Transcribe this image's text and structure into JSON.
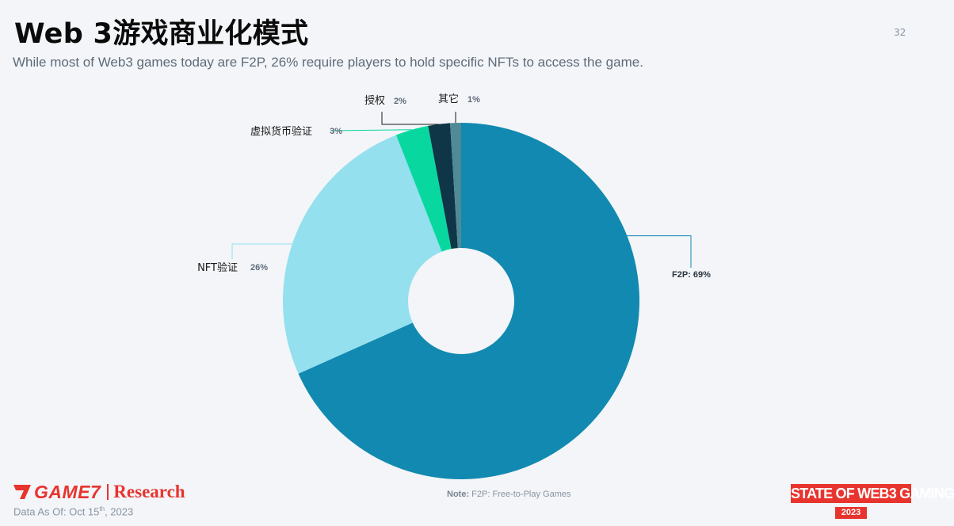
{
  "page": {
    "title": "Web 3游戏商业化模式",
    "page_number": "32",
    "subtitle": "While most of Web3 games today are F2P, 26% require players to hold specific NFTs to access the game.",
    "note_label": "Note:",
    "note_text": "F2P: Free-to-Play Games",
    "data_as_of_prefix": "Data As Of: Oct 15",
    "data_as_of_sup": "th",
    "data_as_of_suffix": ", 2023",
    "logo_brand": "GAME7",
    "logo_research": "Research",
    "event_badge_text": "STATE OF WEB3 GAMING",
    "event_badge_year": "2023",
    "brand_color": "#e8342e"
  },
  "chart_data": {
    "type": "pie",
    "donut": true,
    "start_angle_deg": 0,
    "direction": "clockwise",
    "slices": [
      {
        "label": "F2P",
        "value": 69,
        "value_label": "69%",
        "color": "#1289b0"
      },
      {
        "label": "NFT验证",
        "value": 26,
        "value_label": "26%",
        "color": "#94e0ef"
      },
      {
        "label": "虚拟货币验证",
        "value": 3,
        "value_label": "3%",
        "color": "#08d8a0"
      },
      {
        "label": "授权",
        "value": 2,
        "value_label": "2%",
        "color": "#0f3646"
      },
      {
        "label": "其它",
        "value": 1,
        "value_label": "1%",
        "color": "#4f8a96"
      }
    ]
  }
}
